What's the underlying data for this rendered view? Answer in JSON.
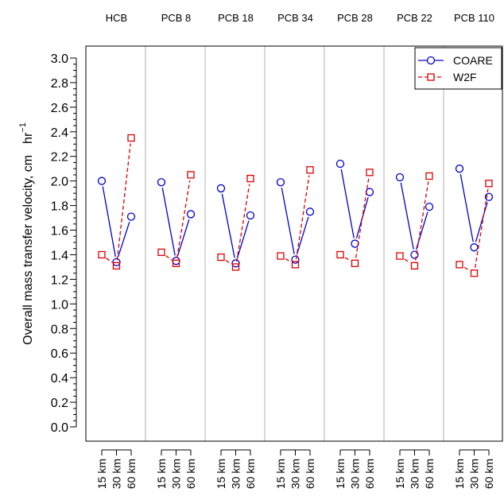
{
  "chart_data": {
    "type": "line",
    "ylabel": "Overall mass transfer velocity, cm",
    "ylabel_unit_base": "hr",
    "ylabel_unit_exp": "−1",
    "ylim": [
      0.0,
      3.0
    ],
    "ytick_step": 0.2,
    "groups": [
      "HCB",
      "PCB 8",
      "PCB 18",
      "PCB 34",
      "PCB 28",
      "PCB 22",
      "PCB 110"
    ],
    "x_labels": [
      "15 km",
      "30 km",
      "60 km"
    ],
    "grid": false,
    "group_separators": true,
    "legend_position": "top-right",
    "series": [
      {
        "name": "COARE",
        "color": "#0000cc",
        "line_style": "solid",
        "marker": "circle",
        "values": [
          [
            2.0,
            1.34,
            1.71
          ],
          [
            1.99,
            1.35,
            1.73
          ],
          [
            1.94,
            1.33,
            1.72
          ],
          [
            1.99,
            1.36,
            1.75
          ],
          [
            2.14,
            1.49,
            1.91
          ],
          [
            2.03,
            1.4,
            1.79
          ],
          [
            2.1,
            1.46,
            1.87
          ]
        ]
      },
      {
        "name": "W2F",
        "color": "#dd0000",
        "line_style": "dashed",
        "marker": "square",
        "values": [
          [
            1.4,
            1.31,
            2.35
          ],
          [
            1.42,
            1.33,
            2.05
          ],
          [
            1.38,
            1.3,
            2.02
          ],
          [
            1.39,
            1.32,
            2.09
          ],
          [
            1.4,
            1.33,
            2.07
          ],
          [
            1.39,
            1.31,
            2.04
          ],
          [
            1.32,
            1.25,
            1.98
          ]
        ]
      }
    ]
  }
}
